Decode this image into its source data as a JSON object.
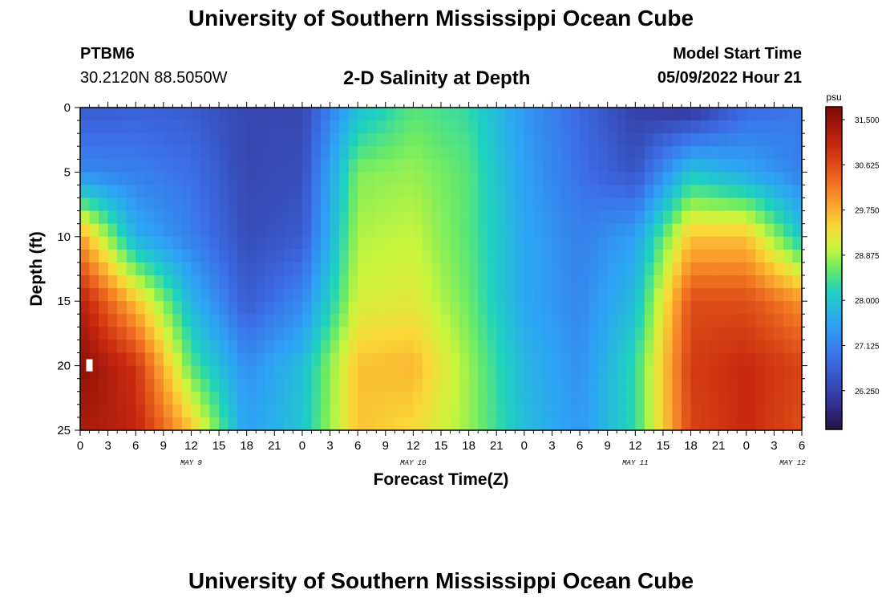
{
  "header": {
    "title_top": "University of Southern Mississippi Ocean Cube",
    "title_bottom": "University of Southern Mississippi Ocean Cube",
    "station_id": "PTBM6",
    "station_coords": "30.2120N  88.5050W",
    "plot_title": "2-D Salinity at Depth",
    "model_start_label": "Model Start Time",
    "model_start_value": "05/09/2022 Hour 21"
  },
  "chart_data": {
    "type": "heatmap",
    "title": "2-D Salinity at Depth",
    "xlabel": "Forecast Time(Z)",
    "ylabel": "Depth (ft)",
    "colorbar_unit": "psu",
    "x_hours_range": [
      0,
      78
    ],
    "y_depth_range": [
      0,
      25
    ],
    "x_ticks": [
      {
        "h": 0,
        "label": "0"
      },
      {
        "h": 3,
        "label": "3"
      },
      {
        "h": 6,
        "label": "6"
      },
      {
        "h": 9,
        "label": "9"
      },
      {
        "h": 12,
        "label": "12"
      },
      {
        "h": 15,
        "label": "15"
      },
      {
        "h": 18,
        "label": "18"
      },
      {
        "h": 21,
        "label": "21"
      },
      {
        "h": 24,
        "label": "0"
      },
      {
        "h": 27,
        "label": "3"
      },
      {
        "h": 30,
        "label": "6"
      },
      {
        "h": 33,
        "label": "9"
      },
      {
        "h": 36,
        "label": "12"
      },
      {
        "h": 39,
        "label": "15"
      },
      {
        "h": 42,
        "label": "18"
      },
      {
        "h": 45,
        "label": "21"
      },
      {
        "h": 48,
        "label": "0"
      },
      {
        "h": 51,
        "label": "3"
      },
      {
        "h": 54,
        "label": "6"
      },
      {
        "h": 57,
        "label": "9"
      },
      {
        "h": 60,
        "label": "12"
      },
      {
        "h": 63,
        "label": "15"
      },
      {
        "h": 66,
        "label": "18"
      },
      {
        "h": 69,
        "label": "21"
      },
      {
        "h": 72,
        "label": "0"
      },
      {
        "h": 75,
        "label": "3"
      },
      {
        "h": 78,
        "label": "6"
      }
    ],
    "day_labels": [
      {
        "h": 12,
        "label": "MAY 9"
      },
      {
        "h": 36,
        "label": "MAY 10"
      },
      {
        "h": 60,
        "label": "MAY 11"
      },
      {
        "h": 77,
        "label": "MAY 12"
      }
    ],
    "y_ticks": [
      {
        "v": 0,
        "label": "0"
      },
      {
        "v": 5,
        "label": "5"
      },
      {
        "v": 10,
        "label": "10"
      },
      {
        "v": 15,
        "label": "15"
      },
      {
        "v": 20,
        "label": "20"
      },
      {
        "v": 25,
        "label": "25"
      }
    ],
    "colorbar": {
      "min": 25.5,
      "max": 31.75,
      "ticks": [
        {
          "v": 31.5,
          "label": "31.500"
        },
        {
          "v": 30.625,
          "label": "30.625"
        },
        {
          "v": 29.75,
          "label": "29.750"
        },
        {
          "v": 28.875,
          "label": "28.875"
        },
        {
          "v": 28.0,
          "label": "28.000"
        },
        {
          "v": 27.125,
          "label": "27.125"
        },
        {
          "v": 26.25,
          "label": "26.250"
        }
      ]
    },
    "depth_levels": [
      0,
      5,
      10,
      15,
      20,
      25
    ],
    "times": [
      0,
      6,
      12,
      18,
      24,
      30,
      36,
      42,
      48,
      54,
      60,
      66,
      72,
      78
    ],
    "salinity_psu": [
      [
        26.6,
        26.7,
        26.6,
        26.3,
        26.3,
        27.9,
        28.5,
        28.3,
        27.4,
        26.8,
        26.2,
        26.0,
        26.8,
        27.0
      ],
      [
        27.2,
        27.1,
        26.9,
        26.3,
        26.4,
        28.7,
        28.8,
        28.5,
        27.5,
        26.9,
        26.5,
        28.0,
        27.6,
        27.1
      ],
      [
        29.9,
        27.7,
        27.1,
        26.4,
        26.6,
        28.9,
        29.0,
        28.5,
        27.6,
        27.1,
        27.5,
        29.6,
        29.6,
        28.0
      ],
      [
        31.2,
        29.6,
        27.8,
        26.6,
        27.2,
        29.1,
        29.2,
        28.6,
        27.6,
        27.2,
        27.9,
        30.6,
        30.6,
        30.0
      ],
      [
        31.6,
        30.9,
        28.5,
        27.3,
        27.9,
        29.6,
        29.7,
        28.8,
        27.8,
        27.3,
        28.3,
        30.8,
        31.0,
        30.7
      ],
      [
        31.3,
        31.1,
        29.6,
        27.5,
        28.0,
        29.6,
        29.4,
        28.8,
        27.9,
        27.4,
        28.3,
        30.7,
        31.0,
        30.6
      ]
    ],
    "marker": {
      "h": 1,
      "depth": 20
    }
  }
}
